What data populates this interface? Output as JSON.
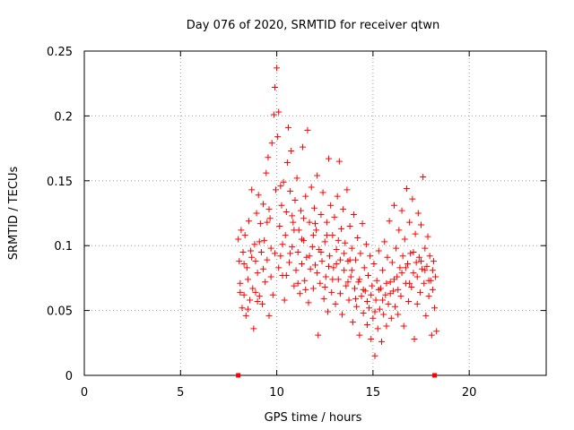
{
  "chart_data": {
    "type": "scatter",
    "title": "Day 076 of 2020, SRMTID for receiver qtwn",
    "xlabel": "GPS time / hours",
    "ylabel": "SRMTID / TECUs",
    "xlim": [
      0,
      24
    ],
    "ylim": [
      0,
      0.25
    ],
    "grid": true,
    "x_ticks": [
      0,
      5,
      10,
      15,
      20
    ],
    "x_tick_labels": [
      "0",
      "5",
      "10",
      "15",
      "20"
    ],
    "y_ticks": [
      0,
      0.05,
      0.1,
      0.15,
      0.2,
      0.25
    ],
    "y_tick_labels": [
      "0",
      "0.05",
      "0.1",
      "0.15",
      "0.2",
      "0.25"
    ],
    "marker": "+",
    "color": "#ff0000",
    "observed_range": {
      "x_start": 8.0,
      "x_end": 18.3,
      "y_min": 0.015,
      "y_max": 0.237
    },
    "axis_markers": [
      8.0,
      18.2
    ],
    "series": [
      {
        "name": "SRMTID",
        "points": [
          [
            8.0,
            0.105
          ],
          [
            8.05,
            0.088
          ],
          [
            8.1,
            0.071
          ],
          [
            8.15,
            0.112
          ],
          [
            8.2,
            0.052
          ],
          [
            8.25,
            0.095
          ],
          [
            8.3,
            0.062
          ],
          [
            8.35,
            0.108
          ],
          [
            8.4,
            0.046
          ],
          [
            8.45,
            0.083
          ],
          [
            8.5,
            0.074
          ],
          [
            8.55,
            0.119
          ],
          [
            8.6,
            0.058
          ],
          [
            8.65,
            0.096
          ],
          [
            8.7,
            0.143
          ],
          [
            8.75,
            0.067
          ],
          [
            8.8,
            0.036
          ],
          [
            8.85,
            0.101
          ],
          [
            8.9,
            0.088
          ],
          [
            8.95,
            0.125
          ],
          [
            9.0,
            0.079
          ],
          [
            9.05,
            0.139
          ],
          [
            9.1,
            0.061
          ],
          [
            9.15,
            0.117
          ],
          [
            9.2,
            0.095
          ],
          [
            9.25,
            0.055
          ],
          [
            9.3,
            0.132
          ],
          [
            9.35,
            0.104
          ],
          [
            9.4,
            0.072
          ],
          [
            9.45,
            0.156
          ],
          [
            9.5,
            0.089
          ],
          [
            9.55,
            0.168
          ],
          [
            9.6,
            0.046
          ],
          [
            9.65,
            0.121
          ],
          [
            9.7,
            0.098
          ],
          [
            9.75,
            0.179
          ],
          [
            9.8,
            0.062
          ],
          [
            9.85,
            0.201
          ],
          [
            9.9,
            0.222
          ],
          [
            9.95,
            0.143
          ],
          [
            10.0,
            0.237
          ],
          [
            10.05,
            0.184
          ],
          [
            10.1,
            0.203
          ],
          [
            10.15,
            0.115
          ],
          [
            10.2,
            0.092
          ],
          [
            10.25,
            0.131
          ],
          [
            10.3,
            0.077
          ],
          [
            10.35,
            0.149
          ],
          [
            10.4,
            0.058
          ],
          [
            10.45,
            0.108
          ],
          [
            10.5,
            0.126
          ],
          [
            10.55,
            0.164
          ],
          [
            10.6,
            0.191
          ],
          [
            10.65,
            0.087
          ],
          [
            10.7,
            0.142
          ],
          [
            10.75,
            0.173
          ],
          [
            10.8,
            0.099
          ],
          [
            10.85,
            0.118
          ],
          [
            10.9,
            0.069
          ],
          [
            10.95,
            0.135
          ],
          [
            11.0,
            0.081
          ],
          [
            11.05,
            0.152
          ],
          [
            11.1,
            0.095
          ],
          [
            11.15,
            0.112
          ],
          [
            11.2,
            0.063
          ],
          [
            11.25,
            0.127
          ],
          [
            11.3,
            0.086
          ],
          [
            11.35,
            0.176
          ],
          [
            11.4,
            0.104
          ],
          [
            11.45,
            0.073
          ],
          [
            11.5,
            0.138
          ],
          [
            11.55,
            0.091
          ],
          [
            11.6,
            0.189
          ],
          [
            11.65,
            0.056
          ],
          [
            11.7,
            0.118
          ],
          [
            11.75,
            0.082
          ],
          [
            11.8,
            0.145
          ],
          [
            11.85,
            0.099
          ],
          [
            11.9,
            0.067
          ],
          [
            11.95,
            0.129
          ],
          [
            12.0,
            0.085
          ],
          [
            12.05,
            0.112
          ],
          [
            12.1,
            0.154
          ],
          [
            12.15,
            0.031
          ],
          [
            12.2,
            0.097
          ],
          [
            12.25,
            0.071
          ],
          [
            12.3,
            0.124
          ],
          [
            12.35,
            0.088
          ],
          [
            12.4,
            0.141
          ],
          [
            12.45,
            0.059
          ],
          [
            12.5,
            0.103
          ],
          [
            12.55,
            0.076
          ],
          [
            12.6,
            0.118
          ],
          [
            12.65,
            0.049
          ],
          [
            12.7,
            0.167
          ],
          [
            12.75,
            0.092
          ],
          [
            12.8,
            0.131
          ],
          [
            12.85,
            0.064
          ],
          [
            12.9,
            0.108
          ],
          [
            12.95,
            0.083
          ],
          [
            13.0,
            0.122
          ],
          [
            13.05,
            0.055
          ],
          [
            13.1,
            0.097
          ],
          [
            13.15,
            0.138
          ],
          [
            13.2,
            0.074
          ],
          [
            13.25,
            0.165
          ],
          [
            13.3,
            0.089
          ],
          [
            13.35,
            0.113
          ],
          [
            13.4,
            0.047
          ],
          [
            13.45,
            0.128
          ],
          [
            13.5,
            0.081
          ],
          [
            13.55,
            0.102
          ],
          [
            13.6,
            0.069
          ],
          [
            13.65,
            0.143
          ],
          [
            13.7,
            0.088
          ],
          [
            13.75,
            0.058
          ],
          [
            13.8,
            0.115
          ],
          [
            13.85,
            0.076
          ],
          [
            13.9,
            0.098
          ],
          [
            13.95,
            0.041
          ],
          [
            14.0,
            0.124
          ],
          [
            14.05,
            0.067
          ],
          [
            14.1,
            0.089
          ],
          [
            14.15,
            0.053
          ],
          [
            14.2,
            0.106
          ],
          [
            14.25,
            0.072
          ],
          [
            14.3,
            0.031
          ],
          [
            14.35,
            0.094
          ],
          [
            14.4,
            0.061
          ],
          [
            14.45,
            0.117
          ],
          [
            14.5,
            0.048
          ],
          [
            14.55,
            0.083
          ],
          [
            14.6,
            0.065
          ],
          [
            14.65,
            0.101
          ],
          [
            14.7,
            0.039
          ],
          [
            14.75,
            0.077
          ],
          [
            14.8,
            0.052
          ],
          [
            14.85,
            0.092
          ],
          [
            14.9,
            0.028
          ],
          [
            14.95,
            0.069
          ],
          [
            15.0,
            0.044
          ],
          [
            15.05,
            0.086
          ],
          [
            15.1,
            0.015
          ],
          [
            15.15,
            0.058
          ],
          [
            15.2,
            0.073
          ],
          [
            15.25,
            0.036
          ],
          [
            15.3,
            0.096
          ],
          [
            15.35,
            0.051
          ],
          [
            15.4,
            0.067
          ],
          [
            15.45,
            0.026
          ],
          [
            15.5,
            0.081
          ],
          [
            15.55,
            0.047
          ],
          [
            15.6,
            0.103
          ],
          [
            15.65,
            0.062
          ],
          [
            15.7,
            0.038
          ],
          [
            15.75,
            0.091
          ],
          [
            15.8,
            0.055
          ],
          [
            15.85,
            0.119
          ],
          [
            15.9,
            0.072
          ],
          [
            15.95,
            0.044
          ],
          [
            16.0,
            0.087
          ],
          [
            16.05,
            0.065
          ],
          [
            16.1,
            0.131
          ],
          [
            16.15,
            0.053
          ],
          [
            16.2,
            0.098
          ],
          [
            16.25,
            0.076
          ],
          [
            16.3,
            0.047
          ],
          [
            16.35,
            0.112
          ],
          [
            16.4,
            0.083
          ],
          [
            16.45,
            0.061
          ],
          [
            16.5,
            0.127
          ],
          [
            16.55,
            0.092
          ],
          [
            16.6,
            0.038
          ],
          [
            16.65,
            0.105
          ],
          [
            16.7,
            0.071
          ],
          [
            16.75,
            0.144
          ],
          [
            16.8,
            0.086
          ],
          [
            16.85,
            0.057
          ],
          [
            16.9,
            0.118
          ],
          [
            16.95,
            0.094
          ],
          [
            17.0,
            0.068
          ],
          [
            17.05,
            0.136
          ],
          [
            17.1,
            0.079
          ],
          [
            17.15,
            0.028
          ],
          [
            17.2,
            0.109
          ],
          [
            17.25,
            0.087
          ],
          [
            17.3,
            0.055
          ],
          [
            17.35,
            0.125
          ],
          [
            17.4,
            0.091
          ],
          [
            17.45,
            0.064
          ],
          [
            17.5,
            0.116
          ],
          [
            17.55,
            0.082
          ],
          [
            17.6,
            0.153
          ],
          [
            17.65,
            0.071
          ],
          [
            17.7,
            0.098
          ],
          [
            17.75,
            0.046
          ],
          [
            17.8,
            0.084
          ],
          [
            17.85,
            0.107
          ],
          [
            17.9,
            0.061
          ],
          [
            17.95,
            0.092
          ],
          [
            18.0,
            0.073
          ],
          [
            18.05,
            0.031
          ],
          [
            18.1,
            0.066
          ],
          [
            18.15,
            0.088
          ],
          [
            18.2,
            0.052
          ],
          [
            18.25,
            0.076
          ],
          [
            18.3,
            0.034
          ],
          [
            8.1,
            0.064
          ],
          [
            8.3,
            0.086
          ],
          [
            8.5,
            0.051
          ],
          [
            8.7,
            0.091
          ],
          [
            8.9,
            0.064
          ],
          [
            9.1,
            0.103
          ],
          [
            9.3,
            0.082
          ],
          [
            9.5,
            0.118
          ],
          [
            9.7,
            0.076
          ],
          [
            9.9,
            0.094
          ],
          [
            10.1,
            0.083
          ],
          [
            10.3,
            0.101
          ],
          [
            10.5,
            0.077
          ],
          [
            10.7,
            0.094
          ],
          [
            10.9,
            0.112
          ],
          [
            11.1,
            0.071
          ],
          [
            11.3,
            0.105
          ],
          [
            11.5,
            0.066
          ],
          [
            11.7,
            0.092
          ],
          [
            11.9,
            0.108
          ],
          [
            12.1,
            0.079
          ],
          [
            12.3,
            0.095
          ],
          [
            12.5,
            0.068
          ],
          [
            12.7,
            0.084
          ],
          [
            12.9,
            0.074
          ],
          [
            13.1,
            0.086
          ],
          [
            13.3,
            0.063
          ],
          [
            13.5,
            0.094
          ],
          [
            13.7,
            0.072
          ],
          [
            13.9,
            0.081
          ],
          [
            14.1,
            0.059
          ],
          [
            14.3,
            0.074
          ],
          [
            14.5,
            0.066
          ],
          [
            14.7,
            0.057
          ],
          [
            14.9,
            0.062
          ],
          [
            15.1,
            0.049
          ],
          [
            15.3,
            0.066
          ],
          [
            15.5,
            0.058
          ],
          [
            15.7,
            0.071
          ],
          [
            15.9,
            0.063
          ],
          [
            16.1,
            0.074
          ],
          [
            16.3,
            0.066
          ],
          [
            16.5,
            0.079
          ],
          [
            16.7,
            0.083
          ],
          [
            16.9,
            0.071
          ],
          [
            17.1,
            0.095
          ],
          [
            17.3,
            0.076
          ],
          [
            17.5,
            0.088
          ],
          [
            17.7,
            0.081
          ],
          [
            17.9,
            0.073
          ],
          [
            18.1,
            0.081
          ],
          [
            9.0,
            0.057
          ],
          [
            9.6,
            0.128
          ],
          [
            10.2,
            0.146
          ],
          [
            10.8,
            0.123
          ],
          [
            11.4,
            0.121
          ],
          [
            12.0,
            0.117
          ],
          [
            12.6,
            0.108
          ],
          [
            13.2,
            0.104
          ],
          [
            13.8,
            0.089
          ]
        ]
      }
    ]
  }
}
